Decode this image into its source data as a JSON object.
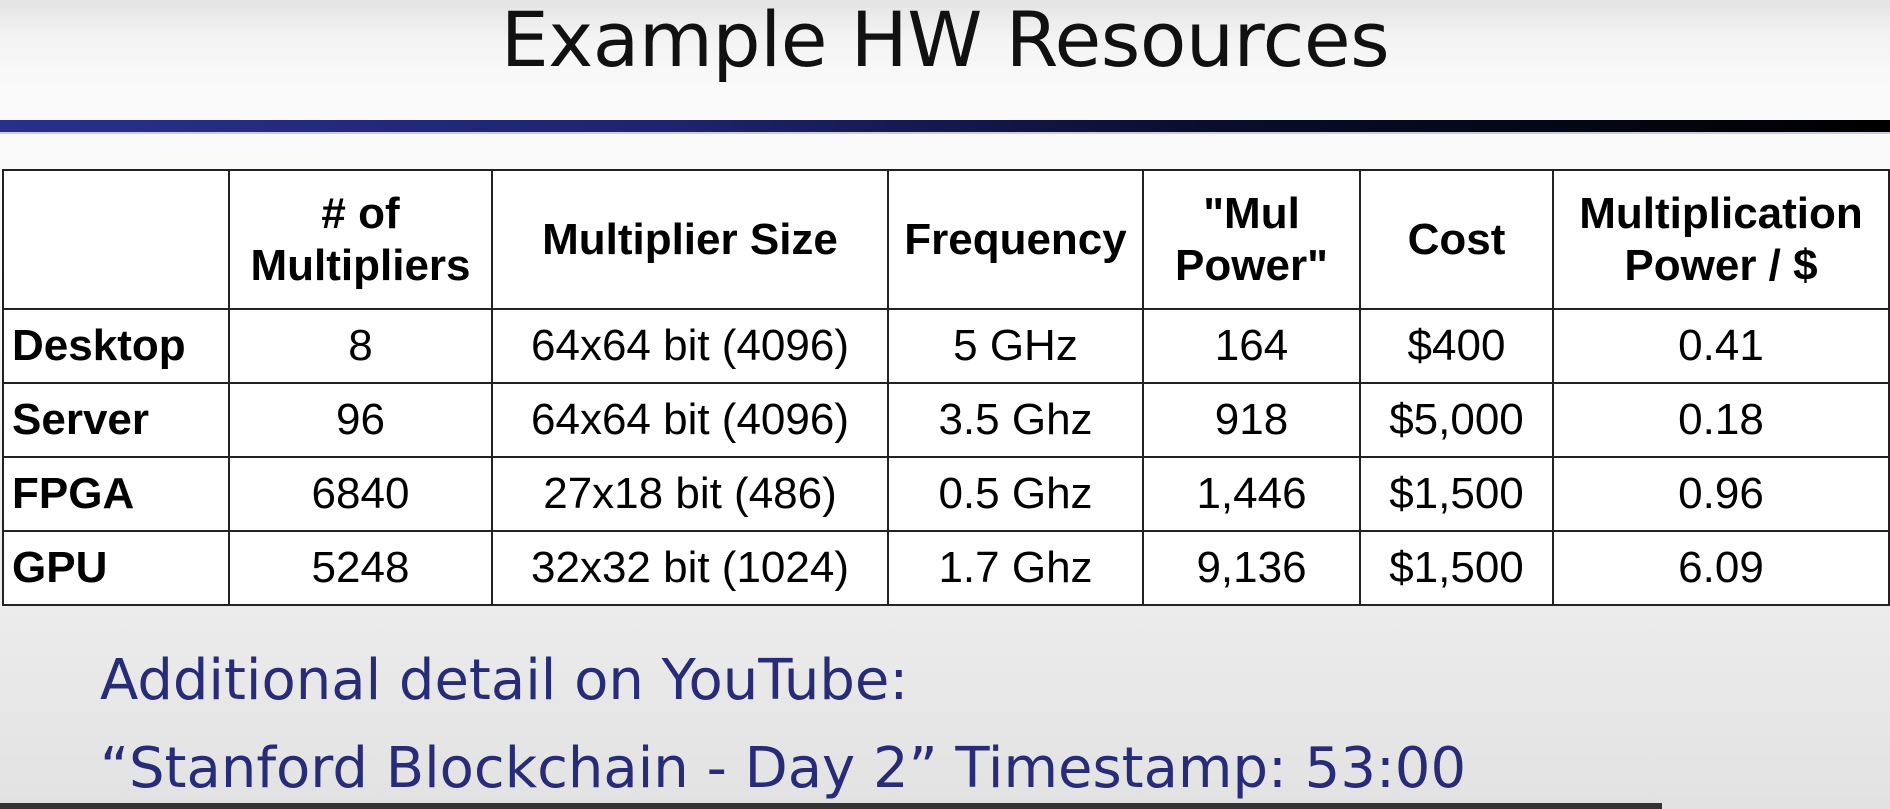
{
  "slide": {
    "title": "Example HW Resources",
    "accent_color": "#2a2f8c",
    "footer_color": "#272b78"
  },
  "table": {
    "headers": [
      "",
      "# of Multipliers",
      "Multiplier Size",
      "Frequency",
      "\"Mul Power\"",
      "Cost",
      "Multiplication Power / $"
    ],
    "rows": [
      [
        "Desktop",
        "8",
        "64x64 bit (4096)",
        "5 GHz",
        "164",
        "$400",
        "0.41"
      ],
      [
        "Server",
        "96",
        "64x64 bit (4096)",
        "3.5 Ghz",
        "918",
        "$5,000",
        "0.18"
      ],
      [
        "FPGA",
        "6840",
        "27x18 bit (486)",
        "0.5 Ghz",
        "1,446",
        "$1,500",
        "0.96"
      ],
      [
        "GPU",
        "5248",
        "32x32 bit (1024)",
        "1.7 Ghz",
        "9,136",
        "$1,500",
        "6.09"
      ]
    ]
  },
  "footer": {
    "line1": "Additional detail on YouTube:",
    "line2": "“Stanford Blockchain - Day 2” Timestamp: 53:00"
  }
}
